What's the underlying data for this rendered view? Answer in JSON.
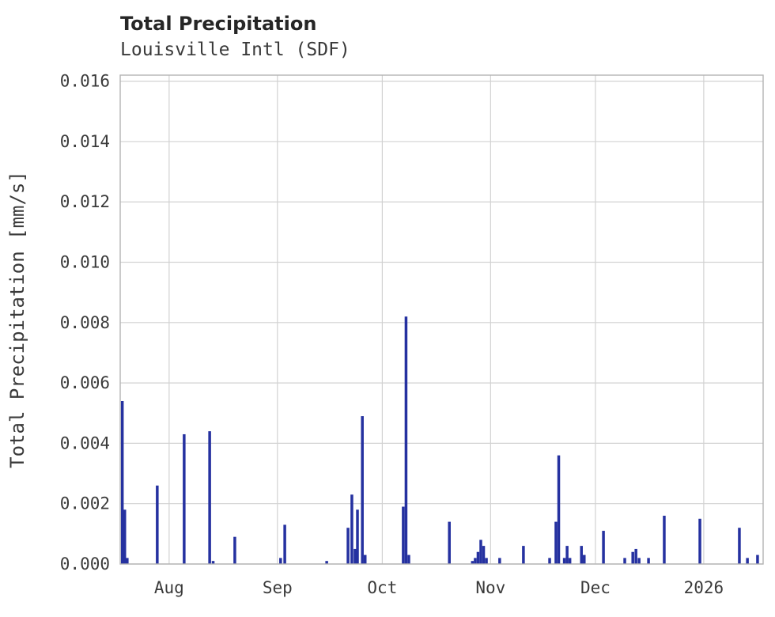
{
  "colors": {
    "bar": "#2531a0",
    "grid": "#d2d2d2",
    "frame": "#b3b3b3",
    "text": "#3a3a3a",
    "background": "#ffffff"
  },
  "chart_data": {
    "type": "bar",
    "title": "Total Precipitation",
    "subtitle": "Louisville Intl (SDF)",
    "xlabel": "",
    "ylabel": "Total Precipitation [mm/s]",
    "ylim": [
      0,
      0.016
    ],
    "yticks": [
      0.0,
      0.002,
      0.004,
      0.006,
      0.008,
      0.01,
      0.012,
      0.014,
      0.016
    ],
    "grid": true,
    "legend": false,
    "x_axis": {
      "total_days": 184,
      "ticks": [
        {
          "label": "Aug",
          "day": 14
        },
        {
          "label": "Sep",
          "day": 45
        },
        {
          "label": "Oct",
          "day": 75
        },
        {
          "label": "Nov",
          "day": 106
        },
        {
          "label": "Dec",
          "day": 136
        },
        {
          "label": "2026",
          "day": 167
        }
      ]
    },
    "series": [
      {
        "name": "Total Precipitation",
        "units": "mm/s",
        "points": [
          [
            0.6,
            0.0054
          ],
          [
            1.3,
            0.0018
          ],
          [
            2.0,
            0.0002
          ],
          [
            10.6,
            0.0026
          ],
          [
            18.3,
            0.0043
          ],
          [
            25.6,
            0.0044
          ],
          [
            26.6,
            0.0001
          ],
          [
            32.8,
            0.0009
          ],
          [
            45.9,
            0.0002
          ],
          [
            47.1,
            0.0013
          ],
          [
            59.1,
            0.0001
          ],
          [
            65.2,
            0.0012
          ],
          [
            66.3,
            0.0023
          ],
          [
            67.2,
            0.0005
          ],
          [
            67.9,
            0.0018
          ],
          [
            69.3,
            0.0049
          ],
          [
            70.1,
            0.0003
          ],
          [
            81.0,
            0.0019
          ],
          [
            81.8,
            0.0082
          ],
          [
            82.6,
            0.0003
          ],
          [
            94.2,
            0.0014
          ],
          [
            100.8,
            0.0001
          ],
          [
            101.6,
            0.0002
          ],
          [
            102.4,
            0.0004
          ],
          [
            103.2,
            0.0008
          ],
          [
            104.0,
            0.0006
          ],
          [
            104.8,
            0.0002
          ],
          [
            108.6,
            0.0002
          ],
          [
            115.4,
            0.0006
          ],
          [
            122.9,
            0.0002
          ],
          [
            124.7,
            0.0014
          ],
          [
            125.5,
            0.0036
          ],
          [
            127.1,
            0.0002
          ],
          [
            127.9,
            0.0006
          ],
          [
            128.7,
            0.0002
          ],
          [
            132.0,
            0.0006
          ],
          [
            132.8,
            0.0003
          ],
          [
            138.3,
            0.0011
          ],
          [
            144.4,
            0.0002
          ],
          [
            146.7,
            0.0004
          ],
          [
            147.6,
            0.0005
          ],
          [
            148.5,
            0.0002
          ],
          [
            151.2,
            0.0002
          ],
          [
            155.7,
            0.0016
          ],
          [
            165.9,
            0.0015
          ],
          [
            177.2,
            0.0012
          ],
          [
            179.5,
            0.0002
          ],
          [
            182.4,
            0.0003
          ]
        ]
      }
    ]
  }
}
